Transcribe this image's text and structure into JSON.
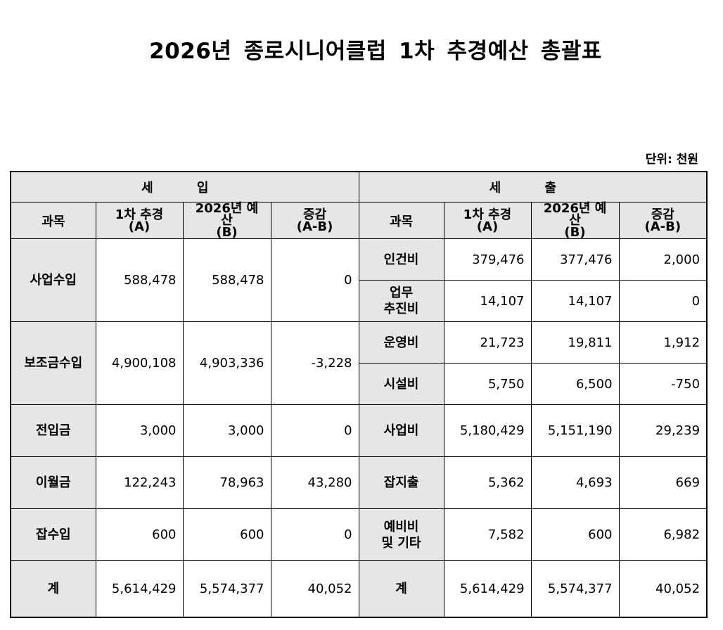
{
  "title": "2026년 종로시니어클럽 1차 추경예산 총괄표",
  "unit": "단위: 천원",
  "sections": {
    "income": "세 입",
    "expense": "세 출"
  },
  "columns": {
    "item": "과목",
    "a_line1": "1차 추경",
    "a_line2": "(A)",
    "b_line1": "2026년 예산",
    "b_line2": "(B)",
    "diff_line1": "증감",
    "diff_line2": "(A-B)"
  },
  "income": [
    {
      "label": "사업수입",
      "a": "588,478",
      "b": "588,478",
      "diff": "0"
    },
    {
      "label": "보조금수입",
      "a": "4,900,108",
      "b": "4,903,336",
      "diff": "-3,228"
    },
    {
      "label": "전입금",
      "a": "3,000",
      "b": "3,000",
      "diff": "0"
    },
    {
      "label": "이월금",
      "a": "122,243",
      "b": "78,963",
      "diff": "43,280"
    },
    {
      "label": "잡수입",
      "a": "600",
      "b": "600",
      "diff": "0"
    }
  ],
  "expense": [
    {
      "label": "인건비",
      "a": "379,476",
      "b": "377,476",
      "diff": "2,000"
    },
    {
      "label_line1": "업무",
      "label_line2": "추진비",
      "a": "14,107",
      "b": "14,107",
      "diff": "0"
    },
    {
      "label": "운영비",
      "a": "21,723",
      "b": "19,811",
      "diff": "1,912"
    },
    {
      "label": "시설비",
      "a": "5,750",
      "b": "6,500",
      "diff": "-750"
    },
    {
      "label": "사업비",
      "a": "5,180,429",
      "b": "5,151,190",
      "diff": "29,239"
    },
    {
      "label": "잡지출",
      "a": "5,362",
      "b": "4,693",
      "diff": "669"
    },
    {
      "label_line1": "예비비",
      "label_line2": "및 기타",
      "a": "7,582",
      "b": "600",
      "diff": "6,982"
    }
  ],
  "totals": {
    "label": "계",
    "income": {
      "a": "5,614,429",
      "b": "5,574,377",
      "diff": "40,052"
    },
    "expense": {
      "a": "5,614,429",
      "b": "5,574,377",
      "diff": "40,052"
    }
  }
}
